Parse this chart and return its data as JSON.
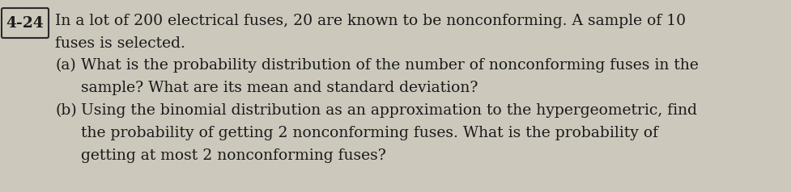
{
  "problem_number": "4-24",
  "background_color": "#ccc8bc",
  "text_color": "#1a1a1a",
  "line1": "In a lot of 200 electrical fuses, 20 are known to be nonconforming. A sample of 10",
  "line2": "fuses is selected.",
  "line3a_label": "(a)",
  "line3a_text": "What is the probability distribution of the number of nonconforming fuses in the",
  "line4a_text": "sample? What are its mean and standard deviation?",
  "line3b_label": "(b)",
  "line3b_text": "Using the binomial distribution as an approximation to the hypergeometric, find",
  "line4b_text": "the probability of getting 2 nonconforming fuses. What is the probability of",
  "line5b_text": "getting at most 2 nonconforming fuses?",
  "font_size": 13.5
}
